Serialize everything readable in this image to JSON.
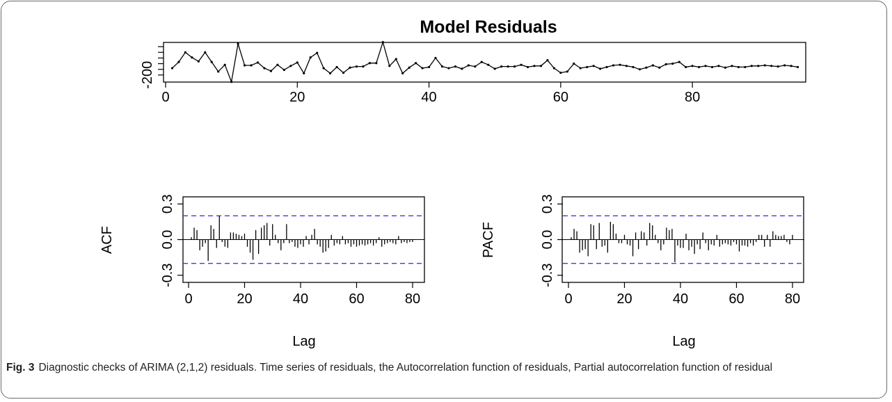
{
  "caption": {
    "label": "Fig. 3",
    "text": "Diagnostic checks of ARIMA (2,1,2) residuals. Time series of residuals, the Autocorrelation function of residuals, Partial autocorrelation function of residual"
  },
  "colors": {
    "series": "#000000",
    "confidence_band": "#3a3aee",
    "axis": "#000000"
  },
  "chart_data": [
    {
      "type": "line",
      "title": "Model Residuals",
      "xlabel": "",
      "ylabel": "",
      "xlim": [
        0,
        97
      ],
      "ylim": [
        -325,
        375
      ],
      "xticks": [
        0,
        20,
        40,
        60,
        80
      ],
      "yticks": [
        -200
      ],
      "ytick_minor": [
        -100,
        0,
        100,
        200,
        300
      ],
      "grid": false,
      "marker": "point",
      "x": [
        1,
        2,
        3,
        4,
        5,
        6,
        7,
        8,
        9,
        10,
        11,
        12,
        13,
        14,
        15,
        16,
        17,
        18,
        19,
        20,
        21,
        22,
        23,
        24,
        25,
        26,
        27,
        28,
        29,
        30,
        31,
        32,
        33,
        34,
        35,
        36,
        37,
        38,
        39,
        40,
        41,
        42,
        43,
        44,
        45,
        46,
        47,
        48,
        49,
        50,
        51,
        52,
        53,
        54,
        55,
        56,
        57,
        58,
        59,
        60,
        61,
        62,
        63,
        64,
        65,
        66,
        67,
        68,
        69,
        70,
        71,
        72,
        73,
        74,
        75,
        76,
        77,
        78,
        79,
        80,
        81,
        82,
        83,
        84,
        85,
        86,
        87,
        88,
        89,
        90,
        91,
        92,
        93,
        94,
        95,
        96
      ],
      "y": [
        -80,
        30,
        200,
        110,
        40,
        200,
        30,
        -140,
        -20,
        -320,
        350,
        -30,
        -30,
        20,
        -80,
        -130,
        -20,
        -110,
        -40,
        20,
        -170,
        110,
        190,
        -80,
        -170,
        -60,
        -160,
        -70,
        -50,
        -50,
        10,
        10,
        380,
        -40,
        80,
        -170,
        -70,
        10,
        -80,
        -60,
        100,
        -50,
        -80,
        -50,
        -90,
        -30,
        -50,
        30,
        -20,
        -90,
        -50,
        -50,
        -50,
        -20,
        -60,
        -40,
        -40,
        60,
        -80,
        -160,
        -140,
        0,
        -80,
        -60,
        -40,
        -90,
        -60,
        -30,
        -20,
        -40,
        -60,
        -100,
        -70,
        -30,
        -70,
        -10,
        0,
        30,
        -60,
        -40,
        -60,
        -40,
        -60,
        -40,
        -70,
        -40,
        -60,
        -60,
        -40,
        -40,
        -30,
        -40,
        -50,
        -30,
        -40,
        -60
      ]
    },
    {
      "type": "bar",
      "title": "",
      "xlabel": "Lag",
      "ylabel": "ACF",
      "xlim": [
        0,
        81
      ],
      "ylim": [
        -0.36,
        0.36
      ],
      "xticks": [
        0,
        20,
        40,
        60,
        80
      ],
      "yticks": [
        -0.3,
        0.0,
        0.3
      ],
      "confidence_limits": [
        0.2,
        -0.2
      ],
      "grid": false,
      "lags": [
        1,
        2,
        3,
        4,
        5,
        6,
        7,
        8,
        9,
        10,
        11,
        12,
        13,
        14,
        15,
        16,
        17,
        18,
        19,
        20,
        21,
        22,
        23,
        24,
        25,
        26,
        27,
        28,
        29,
        30,
        31,
        32,
        33,
        34,
        35,
        36,
        37,
        38,
        39,
        40,
        41,
        42,
        43,
        44,
        45,
        46,
        47,
        48,
        49,
        50,
        51,
        52,
        53,
        54,
        55,
        56,
        57,
        58,
        59,
        60,
        61,
        62,
        63,
        64,
        65,
        66,
        67,
        68,
        69,
        70,
        71,
        72,
        73,
        74,
        75,
        76,
        77,
        78,
        79,
        80
      ],
      "values": [
        0.02,
        0.1,
        0.08,
        -0.09,
        -0.06,
        -0.03,
        -0.18,
        0.12,
        0.09,
        -0.07,
        0.2,
        -0.02,
        -0.06,
        -0.07,
        0.06,
        0.06,
        0.05,
        0.04,
        0.03,
        0.05,
        -0.06,
        -0.11,
        -0.17,
        0.08,
        -0.12,
        0.1,
        0.12,
        0.14,
        -0.05,
        0.13,
        0.04,
        -0.03,
        -0.09,
        -0.03,
        0.13,
        -0.03,
        -0.02,
        -0.06,
        -0.07,
        -0.04,
        -0.06,
        0.03,
        -0.04,
        0.04,
        0.09,
        -0.04,
        -0.06,
        -0.11,
        -0.1,
        -0.07,
        0.04,
        -0.05,
        -0.03,
        -0.04,
        0.03,
        -0.04,
        -0.03,
        -0.06,
        -0.04,
        -0.06,
        -0.05,
        -0.04,
        -0.05,
        -0.04,
        -0.03,
        -0.05,
        -0.03,
        0.02,
        -0.06,
        -0.04,
        -0.03,
        -0.02,
        -0.03,
        -0.04,
        0.03,
        -0.03,
        -0.02,
        -0.03,
        -0.02,
        -0.02
      ]
    },
    {
      "type": "bar",
      "title": "",
      "xlabel": "Lag",
      "ylabel": "PACF",
      "xlim": [
        0,
        81
      ],
      "ylim": [
        -0.36,
        0.36
      ],
      "xticks": [
        0,
        20,
        40,
        60,
        80
      ],
      "yticks": [
        -0.3,
        0.0,
        0.3
      ],
      "confidence_limits": [
        0.2,
        -0.2
      ],
      "grid": false,
      "lags": [
        1,
        2,
        3,
        4,
        5,
        6,
        7,
        8,
        9,
        10,
        11,
        12,
        13,
        14,
        15,
        16,
        17,
        18,
        19,
        20,
        21,
        22,
        23,
        24,
        25,
        26,
        27,
        28,
        29,
        30,
        31,
        32,
        33,
        34,
        35,
        36,
        37,
        38,
        39,
        40,
        41,
        42,
        43,
        44,
        45,
        46,
        47,
        48,
        49,
        50,
        51,
        52,
        53,
        54,
        55,
        56,
        57,
        58,
        59,
        60,
        61,
        62,
        63,
        64,
        65,
        66,
        67,
        68,
        69,
        70,
        71,
        72,
        73,
        74,
        75,
        76,
        77,
        78,
        79,
        80
      ],
      "values": [
        0.02,
        0.09,
        0.07,
        -0.11,
        -0.09,
        -0.08,
        -0.14,
        0.13,
        0.12,
        -0.08,
        0.14,
        -0.06,
        -0.05,
        -0.11,
        0.15,
        0.13,
        0.05,
        -0.03,
        -0.03,
        0.04,
        -0.04,
        -0.05,
        -0.14,
        0.06,
        -0.08,
        0.07,
        0.06,
        -0.05,
        0.14,
        0.12,
        0.04,
        -0.03,
        -0.09,
        -0.04,
        0.1,
        0.08,
        0.09,
        -0.19,
        -0.05,
        -0.07,
        -0.07,
        0.05,
        -0.09,
        -0.06,
        -0.12,
        -0.04,
        -0.08,
        0.06,
        -0.03,
        -0.09,
        -0.04,
        -0.05,
        0.04,
        -0.06,
        -0.04,
        -0.03,
        -0.04,
        -0.05,
        -0.02,
        -0.04,
        -0.1,
        -0.05,
        -0.05,
        -0.06,
        -0.03,
        -0.05,
        -0.02,
        0.04,
        0.04,
        -0.06,
        0.04,
        -0.06,
        0.07,
        0.04,
        0.03,
        0.03,
        0.04,
        -0.02,
        -0.04,
        0.04
      ]
    }
  ]
}
